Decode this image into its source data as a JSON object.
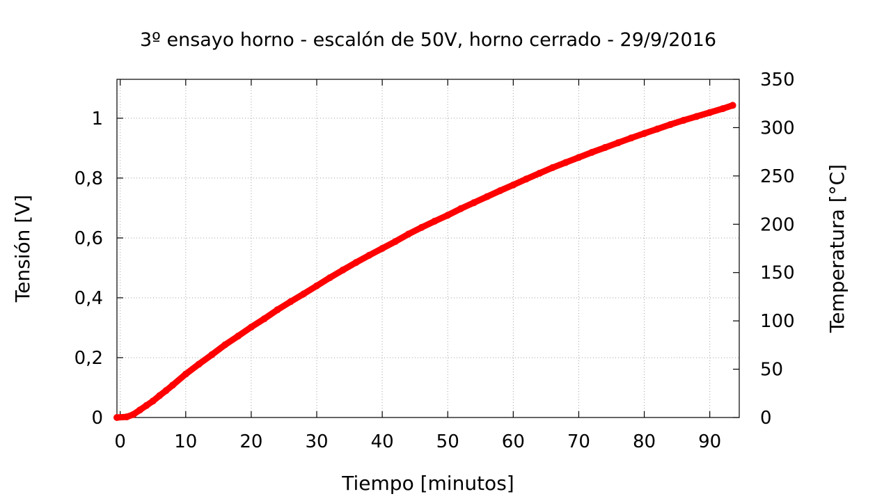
{
  "chart_data": {
    "type": "scatter",
    "title": "3º ensayo horno - escalón de 50V, horno cerrado - 29/9/2016",
    "xlabel": "Tiempo [minutos]",
    "ylabel": "Tensión [V]",
    "y2label": "Temperatura [°C]",
    "xlim": [
      -0.5,
      94.5
    ],
    "ylim": [
      0,
      1.13
    ],
    "y2lim": [
      0,
      350
    ],
    "x_ticks": [
      0,
      10,
      20,
      30,
      40,
      50,
      60,
      70,
      80,
      90
    ],
    "x_tick_labels": [
      "0",
      "10",
      "20",
      "30",
      "40",
      "50",
      "60",
      "70",
      "80",
      "90"
    ],
    "y_ticks": [
      0,
      0.2,
      0.4,
      0.6,
      0.8,
      1.0
    ],
    "y_tick_labels": [
      "0",
      "0,2",
      "0,4",
      "0,6",
      "0,8",
      "1"
    ],
    "y2_ticks": [
      0,
      50,
      100,
      150,
      200,
      250,
      300,
      350
    ],
    "y2_tick_labels": [
      "0",
      "50",
      "100",
      "150",
      "200",
      "250",
      "300",
      "350"
    ],
    "grid": true,
    "marker_color": "#ff0000",
    "series": [
      {
        "x": [
          -0.5,
          1,
          2,
          3,
          4,
          5,
          6,
          7,
          8,
          10,
          12,
          14,
          16,
          18,
          20,
          22,
          24,
          26,
          28,
          30,
          32,
          34,
          36,
          38,
          40,
          42,
          44,
          46,
          48,
          50,
          52,
          54,
          56,
          58,
          60,
          62,
          64,
          66,
          68,
          70,
          72,
          74,
          76,
          78,
          80,
          82,
          84,
          86,
          88,
          90,
          92,
          93.5
        ],
        "values": [
          0,
          0.002,
          0.01,
          0.025,
          0.04,
          0.055,
          0.073,
          0.09,
          0.108,
          0.145,
          0.178,
          0.21,
          0.243,
          0.272,
          0.302,
          0.33,
          0.36,
          0.387,
          0.413,
          0.44,
          0.467,
          0.493,
          0.518,
          0.542,
          0.565,
          0.588,
          0.613,
          0.635,
          0.656,
          0.676,
          0.698,
          0.718,
          0.738,
          0.758,
          0.777,
          0.797,
          0.816,
          0.835,
          0.852,
          0.869,
          0.886,
          0.902,
          0.918,
          0.934,
          0.949,
          0.964,
          0.979,
          0.993,
          1.006,
          1.019,
          1.032,
          1.043
        ]
      }
    ]
  }
}
